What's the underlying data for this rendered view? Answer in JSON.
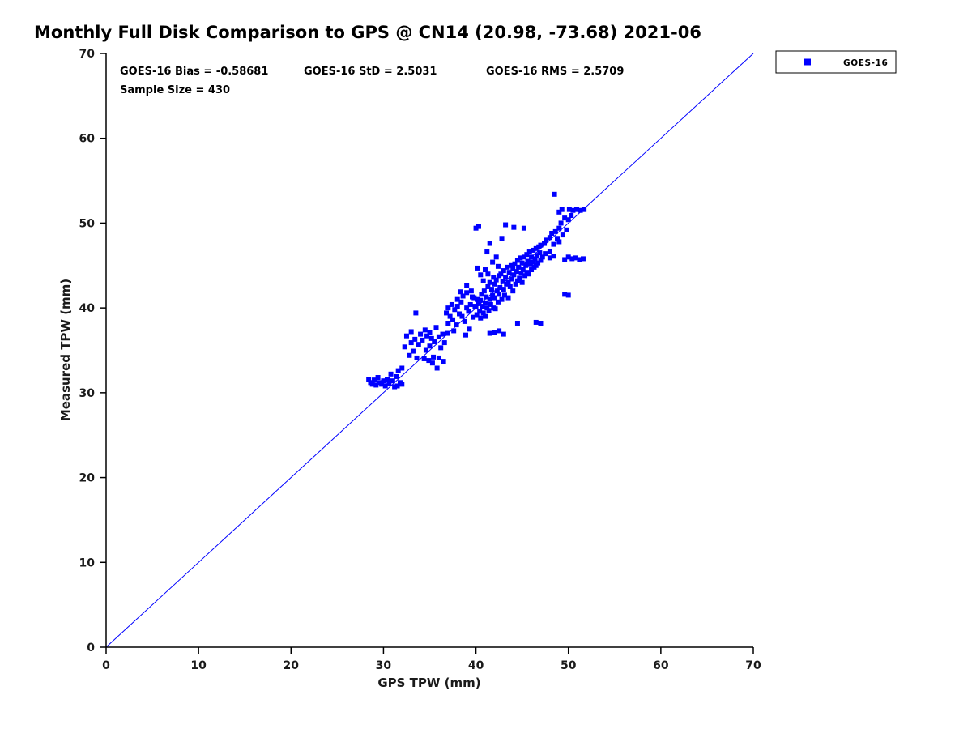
{
  "chart_data": {
    "type": "scatter",
    "title": "Monthly Full Disk Comparison to GPS @ CN14 (20.98, -73.68) 2021-06",
    "xlabel": "GPS TPW (mm)",
    "ylabel": "Measured TPW (mm)",
    "xlim": [
      0,
      70
    ],
    "ylim": [
      0,
      70
    ],
    "xticks": [
      0,
      10,
      20,
      30,
      40,
      50,
      60,
      70
    ],
    "yticks": [
      0,
      10,
      20,
      30,
      40,
      50,
      60,
      70
    ],
    "grid": false,
    "marker": "filled-square",
    "marker_color": "#0000ff",
    "axis_color": "#000000",
    "annotations": {
      "bias": "GOES-16 Bias = -0.58681",
      "std": "GOES-16 StD = 2.5031",
      "rms": "GOES-16 RMS = 2.5709",
      "sample": "Sample Size = 430"
    },
    "stats": {
      "bias": -0.58681,
      "std": 2.5031,
      "rms": 2.5709,
      "sample_size": 430
    },
    "legend": {
      "position": "outside-top-right",
      "entries": [
        {
          "label": "GOES-16",
          "marker": "filled-square",
          "color": "#0000ff"
        }
      ]
    },
    "reference_line": {
      "from": [
        0,
        0
      ],
      "to": [
        70,
        70
      ],
      "color": "#0000ff"
    },
    "series": [
      {
        "name": "GOES-16",
        "points": [
          [
            28.4,
            31.6
          ],
          [
            28.6,
            31.2
          ],
          [
            28.8,
            31.0
          ],
          [
            29.0,
            31.5
          ],
          [
            29.2,
            30.9
          ],
          [
            29.4,
            31.8
          ],
          [
            29.6,
            31.2
          ],
          [
            29.8,
            31.0
          ],
          [
            30.0,
            31.4
          ],
          [
            30.2,
            30.8
          ],
          [
            30.4,
            31.6
          ],
          [
            30.6,
            31.1
          ],
          [
            30.8,
            32.2
          ],
          [
            31.0,
            31.4
          ],
          [
            31.2,
            30.7
          ],
          [
            31.4,
            31.9
          ],
          [
            31.6,
            32.6
          ],
          [
            31.8,
            31.2
          ],
          [
            32.0,
            32.9
          ],
          [
            32.0,
            31.0
          ],
          [
            31.5,
            30.8
          ],
          [
            32.3,
            35.4
          ],
          [
            32.5,
            36.7
          ],
          [
            32.8,
            34.4
          ],
          [
            33.0,
            35.9
          ],
          [
            33.0,
            37.2
          ],
          [
            33.2,
            34.9
          ],
          [
            33.4,
            36.3
          ],
          [
            33.6,
            34.1
          ],
          [
            33.8,
            35.7
          ],
          [
            33.5,
            39.4
          ],
          [
            34.0,
            36.9
          ],
          [
            34.2,
            36.2
          ],
          [
            34.4,
            34.0
          ],
          [
            34.5,
            37.4
          ],
          [
            34.7,
            36.7
          ],
          [
            34.9,
            33.8
          ],
          [
            35.0,
            35.5
          ],
          [
            35.0,
            37.1
          ],
          [
            35.2,
            36.4
          ],
          [
            35.4,
            34.2
          ],
          [
            35.5,
            36.0
          ],
          [
            35.7,
            37.7
          ],
          [
            35.8,
            32.9
          ],
          [
            36.0,
            34.1
          ],
          [
            36.0,
            36.6
          ],
          [
            36.2,
            35.3
          ],
          [
            36.4,
            36.9
          ],
          [
            36.5,
            33.7
          ],
          [
            36.6,
            35.9
          ],
          [
            34.6,
            35.0
          ],
          [
            35.3,
            33.5
          ],
          [
            36.8,
            39.4
          ],
          [
            36.9,
            37.0
          ],
          [
            37.0,
            38.2
          ],
          [
            37.0,
            40.0
          ],
          [
            37.2,
            39.0
          ],
          [
            37.4,
            40.4
          ],
          [
            37.5,
            38.6
          ],
          [
            37.6,
            37.3
          ],
          [
            37.7,
            39.8
          ],
          [
            37.9,
            38.0
          ],
          [
            38.0,
            40.2
          ],
          [
            38.0,
            41.0
          ],
          [
            38.2,
            39.3
          ],
          [
            38.3,
            41.9
          ],
          [
            38.4,
            40.7
          ],
          [
            38.5,
            39.0
          ],
          [
            38.6,
            41.4
          ],
          [
            38.8,
            38.4
          ],
          [
            38.9,
            36.8
          ],
          [
            39.0,
            40.0
          ],
          [
            39.0,
            41.8
          ],
          [
            39.0,
            42.6
          ],
          [
            39.2,
            39.6
          ],
          [
            39.3,
            37.5
          ],
          [
            39.4,
            40.4
          ],
          [
            39.5,
            42.0
          ],
          [
            39.6,
            41.3
          ],
          [
            39.7,
            38.9
          ],
          [
            39.8,
            41.2
          ],
          [
            39.9,
            40.2
          ],
          [
            40.0,
            40.1
          ],
          [
            40.1,
            39.2
          ],
          [
            40.2,
            41.0
          ],
          [
            40.3,
            40.5
          ],
          [
            40.4,
            39.6
          ],
          [
            40.5,
            40.9
          ],
          [
            40.5,
            38.8
          ],
          [
            40.6,
            41.6
          ],
          [
            40.7,
            40.2
          ],
          [
            40.8,
            39.4
          ],
          [
            40.9,
            42.0
          ],
          [
            41.0,
            40.6
          ],
          [
            41.0,
            39.0
          ],
          [
            41.1,
            41.3
          ],
          [
            41.2,
            40.0
          ],
          [
            41.3,
            42.5
          ],
          [
            41.4,
            39.7
          ],
          [
            41.5,
            41.0
          ],
          [
            41.5,
            43.0
          ],
          [
            41.6,
            40.4
          ],
          [
            41.7,
            42.2
          ],
          [
            41.8,
            41.5
          ],
          [
            41.9,
            40.0
          ],
          [
            42.0,
            42.8
          ],
          [
            42.0,
            41.2
          ],
          [
            42.1,
            39.9
          ],
          [
            42.2,
            43.3
          ],
          [
            42.3,
            42.0
          ],
          [
            42.4,
            40.7
          ],
          [
            42.5,
            43.8
          ],
          [
            42.5,
            41.6
          ],
          [
            42.6,
            42.4
          ],
          [
            42.7,
            44.0
          ],
          [
            42.8,
            41.0
          ],
          [
            42.9,
            43.1
          ],
          [
            43.0,
            42.2
          ],
          [
            43.0,
            44.4
          ],
          [
            43.1,
            41.5
          ],
          [
            43.2,
            43.6
          ],
          [
            43.3,
            42.8
          ],
          [
            43.4,
            44.8
          ],
          [
            43.5,
            43.0
          ],
          [
            43.5,
            41.2
          ],
          [
            43.6,
            44.2
          ],
          [
            43.7,
            42.5
          ],
          [
            43.8,
            45.0
          ],
          [
            43.9,
            43.4
          ],
          [
            44.0,
            44.6
          ],
          [
            44.0,
            42.0
          ],
          [
            44.1,
            43.9
          ],
          [
            44.2,
            45.2
          ],
          [
            44.3,
            42.8
          ],
          [
            44.4,
            44.3
          ],
          [
            44.5,
            45.6
          ],
          [
            44.5,
            43.2
          ],
          [
            44.6,
            44.8
          ],
          [
            44.7,
            43.5
          ],
          [
            44.8,
            45.9
          ],
          [
            44.9,
            44.1
          ],
          [
            45.0,
            45.3
          ],
          [
            45.0,
            43.0
          ],
          [
            45.1,
            44.5
          ],
          [
            45.2,
            46.0
          ],
          [
            45.3,
            43.8
          ],
          [
            45.4,
            45.0
          ],
          [
            45.5,
            46.3
          ],
          [
            45.5,
            44.2
          ],
          [
            45.6,
            45.5
          ],
          [
            45.7,
            44.0
          ],
          [
            45.8,
            46.6
          ],
          [
            45.9,
            45.1
          ],
          [
            46.0,
            46.0
          ],
          [
            46.0,
            44.5
          ],
          [
            46.1,
            45.4
          ],
          [
            46.2,
            46.8
          ],
          [
            46.3,
            44.8
          ],
          [
            46.4,
            45.8
          ],
          [
            46.5,
            47.0
          ],
          [
            46.5,
            45.0
          ],
          [
            46.6,
            46.2
          ],
          [
            46.7,
            45.3
          ],
          [
            46.8,
            47.2
          ],
          [
            46.9,
            46.5
          ],
          [
            47.0,
            45.6
          ],
          [
            47.0,
            47.4
          ],
          [
            47.2,
            46.0
          ],
          [
            47.4,
            47.6
          ],
          [
            47.5,
            46.4
          ],
          [
            41.5,
            37.0
          ],
          [
            42.0,
            37.1
          ],
          [
            42.5,
            37.3
          ],
          [
            43.0,
            36.9
          ],
          [
            44.5,
            38.2
          ],
          [
            46.5,
            38.3
          ],
          [
            47.0,
            38.2
          ],
          [
            40.0,
            49.4
          ],
          [
            40.3,
            49.6
          ],
          [
            41.5,
            47.6
          ],
          [
            42.8,
            48.2
          ],
          [
            43.2,
            49.8
          ],
          [
            44.1,
            49.5
          ],
          [
            45.2,
            49.4
          ],
          [
            41.2,
            46.6
          ],
          [
            42.2,
            46.0
          ],
          [
            41.8,
            45.4
          ],
          [
            41.0,
            44.5
          ],
          [
            40.5,
            43.9
          ],
          [
            40.2,
            44.7
          ],
          [
            40.8,
            43.2
          ],
          [
            41.3,
            44.0
          ],
          [
            42.4,
            44.9
          ],
          [
            41.9,
            43.6
          ],
          [
            47.6,
            48.0
          ],
          [
            48.0,
            48.3
          ],
          [
            48.0,
            46.7
          ],
          [
            48.2,
            48.8
          ],
          [
            48.4,
            47.5
          ],
          [
            48.6,
            49.0
          ],
          [
            48.8,
            48.2
          ],
          [
            49.0,
            49.4
          ],
          [
            49.0,
            47.8
          ],
          [
            49.2,
            50.0
          ],
          [
            49.4,
            48.6
          ],
          [
            49.6,
            50.6
          ],
          [
            49.8,
            49.2
          ],
          [
            50.0,
            50.4
          ],
          [
            48.5,
            53.4
          ],
          [
            49.0,
            51.3
          ],
          [
            49.3,
            51.6
          ],
          [
            50.1,
            51.6
          ],
          [
            50.5,
            51.5
          ],
          [
            50.9,
            51.6
          ],
          [
            51.3,
            51.5
          ],
          [
            51.7,
            51.6
          ],
          [
            50.3,
            50.9
          ],
          [
            49.6,
            45.7
          ],
          [
            50.0,
            46.0
          ],
          [
            50.4,
            45.8
          ],
          [
            50.8,
            45.9
          ],
          [
            51.2,
            45.7
          ],
          [
            51.6,
            45.8
          ],
          [
            50.0,
            41.5
          ],
          [
            49.6,
            41.6
          ],
          [
            48.0,
            45.9
          ],
          [
            48.4,
            46.1
          ]
        ]
      }
    ]
  }
}
